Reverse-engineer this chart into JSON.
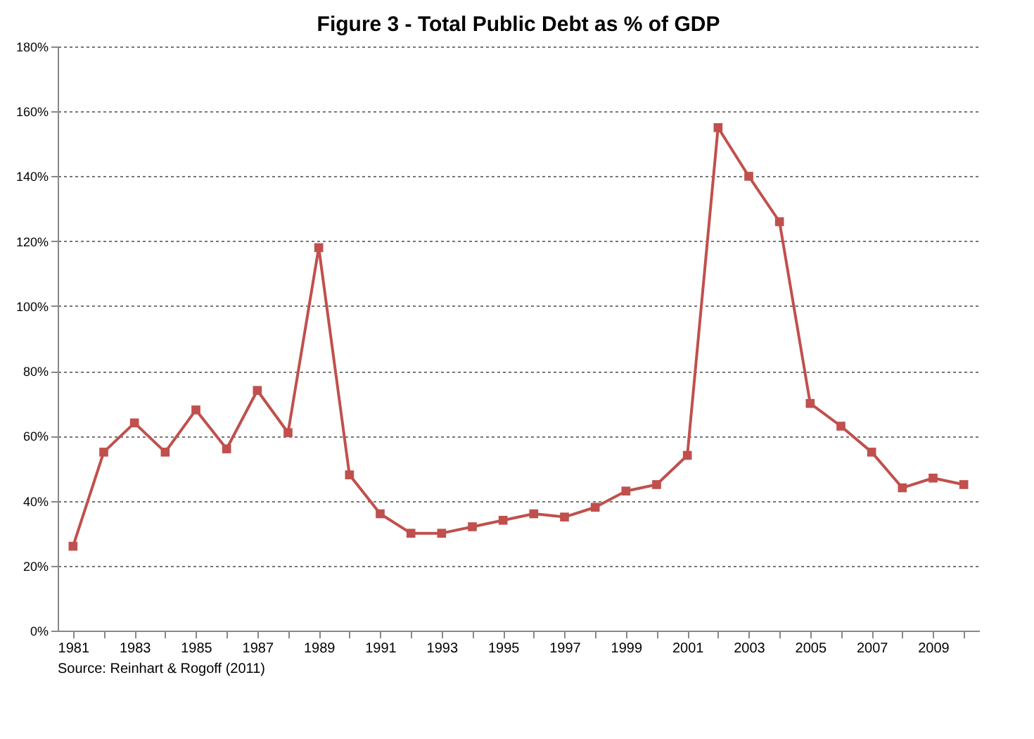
{
  "chart_data": {
    "type": "line",
    "title": "Figure 3 - Total Public Debt as % of GDP",
    "categories": [
      "1981",
      null,
      "1983",
      null,
      "1985",
      null,
      "1987",
      null,
      "1989",
      null,
      "1991",
      null,
      "1993",
      null,
      "1995",
      null,
      "1997",
      null,
      "1999",
      null,
      "2001",
      null,
      "2003",
      null,
      "2005",
      null,
      "2007",
      null,
      "2009",
      null
    ],
    "series": [
      {
        "color": "#c0504d",
        "values": [
          26,
          55,
          64,
          55,
          68,
          56,
          74,
          61,
          118,
          48,
          36,
          30,
          30,
          32,
          34,
          36,
          35,
          38,
          43,
          45,
          54,
          155,
          140,
          126,
          70,
          63,
          55,
          44,
          47,
          45
        ]
      }
    ],
    "ylim": [
      0,
      180
    ],
    "yticks": [
      {
        "value": 0,
        "label": "0%"
      },
      {
        "value": 20,
        "label": "20%"
      },
      {
        "value": 40,
        "label": "40%"
      },
      {
        "value": 60,
        "label": "60%"
      },
      {
        "value": 80,
        "label": "80%"
      },
      {
        "value": 100,
        "label": "100%"
      },
      {
        "value": 120,
        "label": "120%"
      },
      {
        "value": 140,
        "label": "140%"
      },
      {
        "value": 160,
        "label": "160%"
      },
      {
        "value": 180,
        "label": "180%"
      }
    ],
    "grid": "y",
    "marker": "square",
    "line_style": "solid",
    "annotations": [
      "Source: Reinhart & Rogoff (2011)"
    ]
  }
}
